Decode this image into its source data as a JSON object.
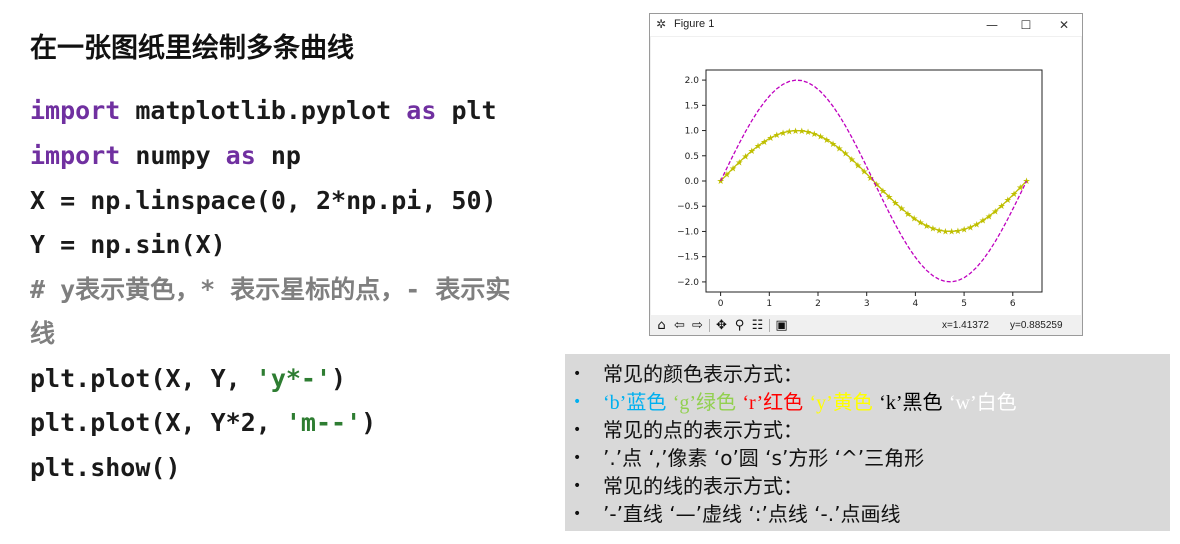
{
  "slide": {
    "title": "在一张图纸里绘制多条曲线",
    "code": {
      "line1": {
        "kw1": "import",
        "mod": " matplotlib.pyplot ",
        "kw2": "as",
        "alias": " plt"
      },
      "line2": {
        "kw1": "import",
        "mod": " numpy ",
        "kw2": "as",
        "alias": " np"
      },
      "line3": "X = np.linspace(0, 2*np.pi, 50)",
      "line4": "Y = np.sin(X)",
      "comment_line1": "# y表示黄色，* 表示星标的点，- 表示实",
      "comment_line2": "线",
      "line5": {
        "pre": "plt.plot(X, Y, ",
        "str": "'y*-'",
        "post": ")"
      },
      "line6": {
        "pre": "plt.plot(X, Y*2, ",
        "str": "'m--'",
        "post": ")"
      },
      "line7": "plt.show()"
    }
  },
  "figure_window": {
    "title": "Figure 1",
    "logo_icon": "matplotlib-logo-icon",
    "controls": {
      "minimize": "—",
      "maximize": "☐",
      "close": "✕"
    },
    "toolbar_icons": [
      "home-icon",
      "back-arrow-icon",
      "forward-arrow-icon",
      "pan-icon",
      "zoom-icon",
      "configure-subplots-icon",
      "save-icon"
    ],
    "status": {
      "x_readout": "x=1.41372",
      "y_readout": "y=0.885259"
    }
  },
  "chart_data": {
    "type": "line",
    "title": "",
    "xlabel": "",
    "ylabel": "",
    "xlim": [
      -0.3,
      6.6
    ],
    "ylim": [
      -2.2,
      2.2
    ],
    "x_ticks": [
      0,
      1,
      2,
      3,
      4,
      5,
      6
    ],
    "y_ticks": [
      -2.0,
      -1.5,
      -1.0,
      -0.5,
      0.0,
      0.5,
      1.0,
      1.5,
      2.0
    ],
    "y_tick_labels": [
      "−2.0",
      "−1.5",
      "−1.0",
      "−0.5",
      "0.0",
      "0.5",
      "1.0",
      "1.5",
      "2.0"
    ],
    "grid": false,
    "series": [
      {
        "function": "sin(x)",
        "x_range": [
          0,
          6.283
        ],
        "points": 50,
        "color": "#bfbf00",
        "style": "solid",
        "marker": "*"
      },
      {
        "function": "2*sin(x)",
        "x_range": [
          0,
          6.283
        ],
        "points": 50,
        "color": "#bf00bf",
        "style": "dashed",
        "marker": "none"
      }
    ]
  },
  "info_box": {
    "color_heading": "常见的颜色表示方式：",
    "colors": [
      {
        "code": "‘b’",
        "name": "蓝色",
        "hex": "#00b0f0"
      },
      {
        "code": "‘g’",
        "name": "绿色",
        "hex": "#92d050"
      },
      {
        "code": "‘r’",
        "name": "红色",
        "hex": "#ff0000"
      },
      {
        "code": "‘y’",
        "name": "黄色",
        "hex": "#ffff00"
      },
      {
        "code": "‘k’",
        "name": "黑色",
        "hex": "#000000"
      },
      {
        "code": "‘w’",
        "name": "白色",
        "hex": "#ffffff"
      }
    ],
    "point_heading": "常见的点的表示方式：",
    "points": "’.’点 ‘,’像素 ‘o’圆 ‘s’方形 ‘^’三角形",
    "line_heading": "常见的线的表示方式：",
    "lines": "’-’直线 ‘—’虚线 ‘:’点线 ‘-.’点画线"
  }
}
